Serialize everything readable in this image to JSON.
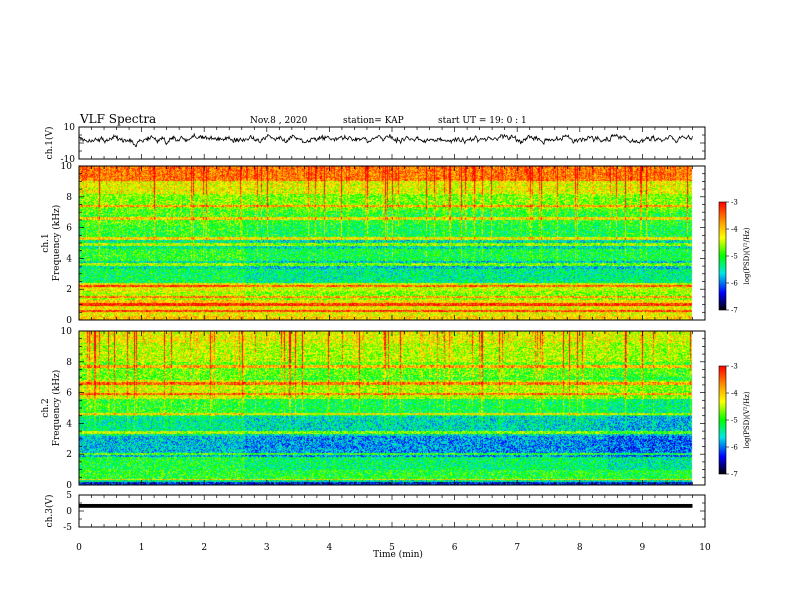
{
  "header": {
    "title": "VLF Spectra",
    "date": "Nov.8  , 2020",
    "station": "station= KAP",
    "start": "start  UT  =   19: 0  : 1"
  },
  "chart_data": [
    {
      "type": "line",
      "panel": "ch1-waveform",
      "ylabel": "ch.1(V)",
      "xlabel": "",
      "xlim": [
        0,
        10
      ],
      "ylim": [
        -10,
        10
      ],
      "yticks": [
        "10",
        "-10"
      ],
      "data_xrange": [
        0,
        9.8
      ],
      "series": [
        {
          "level": 2.5,
          "amplitude": 2.5,
          "color": "#000000"
        }
      ]
    },
    {
      "type": "heatmap",
      "panel": "ch1-spectrogram",
      "ylabel": "ch.1 Frequency (kHz)",
      "xlabel": "",
      "xlim": [
        0,
        10
      ],
      "ylim": [
        0,
        10
      ],
      "yticks": [
        "0",
        "2",
        "4",
        "6",
        "8",
        "10"
      ],
      "data_xrange": [
        0,
        9.8
      ],
      "break_times": [
        2.65
      ],
      "colorbar": {
        "label": "log(PSD)(V²/Hz)",
        "range": [
          -7,
          -3
        ],
        "ticks": [
          "-3",
          "-4",
          "-5",
          "-6",
          "-7"
        ]
      },
      "bands": [
        {
          "f": [
            0,
            0.25
          ],
          "level": -4.0
        },
        {
          "f": [
            0.25,
            0.9
          ],
          "level": -4.2
        },
        {
          "f": [
            0.9,
            1.3
          ],
          "level": -4.0
        },
        {
          "f": [
            1.3,
            1.9
          ],
          "level": -4.5
        },
        {
          "f": [
            1.9,
            2.4
          ],
          "level": -4.2
        },
        {
          "f": [
            2.4,
            3.3
          ],
          "level": -5.2
        },
        {
          "f": [
            3.3,
            3.8
          ],
          "level": -5.5
        },
        {
          "f": [
            3.8,
            4.6
          ],
          "level": -5.0
        },
        {
          "f": [
            4.6,
            5.2
          ],
          "level": -5.4
        },
        {
          "f": [
            5.2,
            6.2
          ],
          "level": -5.0
        },
        {
          "f": [
            6.2,
            7.2
          ],
          "level": -4.9
        },
        {
          "f": [
            7.2,
            8.2
          ],
          "level": -4.7
        },
        {
          "f": [
            8.2,
            9.0
          ],
          "level": -4.3
        },
        {
          "f": [
            9.0,
            10.0
          ],
          "level": -3.6
        }
      ],
      "lines_khz": [
        0.6,
        1.0,
        1.5,
        2.2,
        3.6,
        4.9,
        5.3,
        6.6,
        7.4
      ]
    },
    {
      "type": "heatmap",
      "panel": "ch2-spectrogram",
      "ylabel": "ch.2 Frequency (kHz)",
      "xlabel": "",
      "xlim": [
        0,
        10
      ],
      "ylim": [
        0,
        10
      ],
      "yticks": [
        "0",
        "2",
        "4",
        "6",
        "8",
        "10"
      ],
      "data_xrange": [
        0,
        9.8
      ],
      "break_times": [
        2.65,
        8.45
      ],
      "colorbar": {
        "label": "log(PSD)(V²/Hz)",
        "range": [
          -7,
          -3
        ],
        "ticks": [
          "-3",
          "-4",
          "-5",
          "-6",
          "-7"
        ]
      },
      "bands": [
        {
          "f": [
            0,
            0.3
          ],
          "level": -6.3
        },
        {
          "f": [
            0.3,
            1.0
          ],
          "level": -5.0
        },
        {
          "f": [
            1.0,
            1.8
          ],
          "level": -5.1
        },
        {
          "f": [
            1.8,
            3.2
          ],
          "level": -5.7
        },
        {
          "f": [
            3.2,
            4.5
          ],
          "level": -5.4
        },
        {
          "f": [
            4.5,
            5.6
          ],
          "level": -5.0
        },
        {
          "f": [
            5.6,
            6.8
          ],
          "level": -4.4
        },
        {
          "f": [
            6.8,
            8.0
          ],
          "level": -4.8
        },
        {
          "f": [
            8.0,
            9.2
          ],
          "level": -4.5
        },
        {
          "f": [
            9.2,
            10.0
          ],
          "level": -4.3
        }
      ],
      "lines_khz": [
        0.3,
        2.0,
        3.4,
        4.6,
        5.9,
        6.6,
        7.7
      ]
    },
    {
      "type": "line",
      "panel": "ch3-waveform",
      "ylabel": "ch.3(V)",
      "xlabel": "Time  (min)",
      "xlim": [
        0,
        10
      ],
      "ylim": [
        -5,
        5
      ],
      "yticks": [
        "5",
        "0",
        "-5"
      ],
      "xticks": [
        "0",
        "1",
        "2",
        "3",
        "4",
        "5",
        "6",
        "7",
        "8",
        "9",
        "10"
      ],
      "data_xrange": [
        0,
        9.8
      ],
      "series": [
        {
          "level": 1.6,
          "band": [
            1.0,
            2.2
          ],
          "color": "#000000"
        }
      ]
    }
  ]
}
